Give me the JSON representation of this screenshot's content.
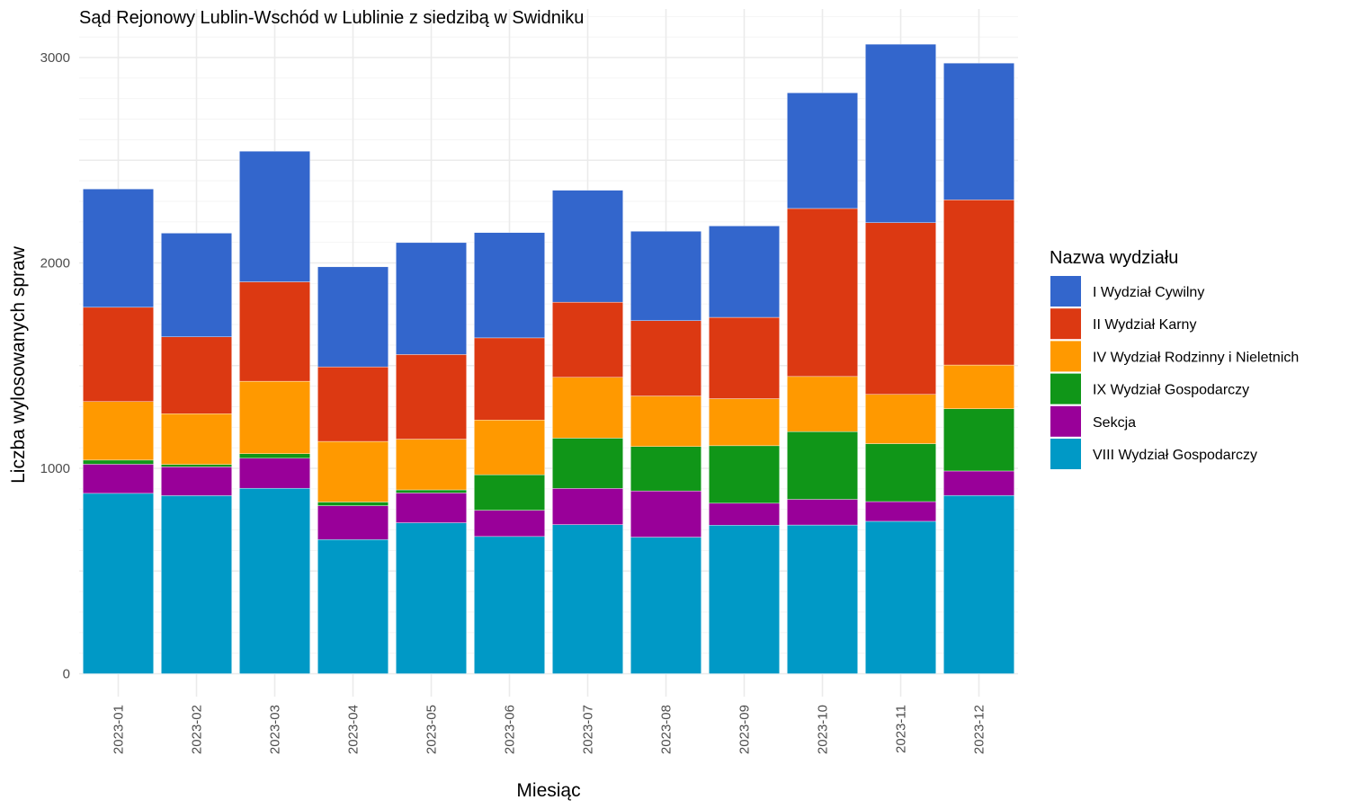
{
  "chart_data": {
    "type": "bar",
    "stacked": true,
    "title": "Sąd Rejonowy Lublin-Wschód w Lublinie z siedzibą w Swidniku",
    "xlabel": "Miesiąc",
    "ylabel": "Liczba wylosowanych spraw",
    "ylim": [
      0,
      3200
    ],
    "yticks": [
      0,
      1000,
      2000,
      3000
    ],
    "grid": true,
    "legend": {
      "title": "Nazwa wydziału",
      "position": "right"
    },
    "categories": [
      "2023-01",
      "2023-02",
      "2023-03",
      "2023-04",
      "2023-05",
      "2023-06",
      "2023-07",
      "2023-08",
      "2023-09",
      "2023-10",
      "2023-11",
      "2023-12"
    ],
    "series": [
      {
        "name": "I Wydział Cywilny",
        "color": "#3366CC",
        "values": [
          576,
          505,
          636,
          487,
          545,
          513,
          545,
          435,
          445,
          563,
          869,
          666
        ]
      },
      {
        "name": "II Wydział Karny",
        "color": "#DC3912",
        "values": [
          459,
          374,
          484,
          363,
          412,
          400,
          366,
          367,
          396,
          818,
          836,
          804
        ]
      },
      {
        "name": "IV Wydział Rodzinny i Nieletnich",
        "color": "#FF9900",
        "values": [
          285,
          247,
          353,
          295,
          247,
          266,
          296,
          246,
          229,
          268,
          240,
          213
        ]
      },
      {
        "name": "IX Wydział Gospodarczy",
        "color": "#109618",
        "values": [
          20,
          12,
          22,
          18,
          15,
          173,
          245,
          216,
          280,
          330,
          282,
          303
        ]
      },
      {
        "name": "Sekcja",
        "color": "#990099",
        "values": [
          142,
          140,
          146,
          165,
          145,
          128,
          176,
          225,
          107,
          125,
          96,
          119
        ]
      },
      {
        "name": "VIII Wydział Gospodarczy",
        "color": "#0099C6",
        "values": [
          878,
          867,
          903,
          653,
          735,
          668,
          726,
          665,
          723,
          724,
          742,
          868
        ]
      }
    ]
  }
}
